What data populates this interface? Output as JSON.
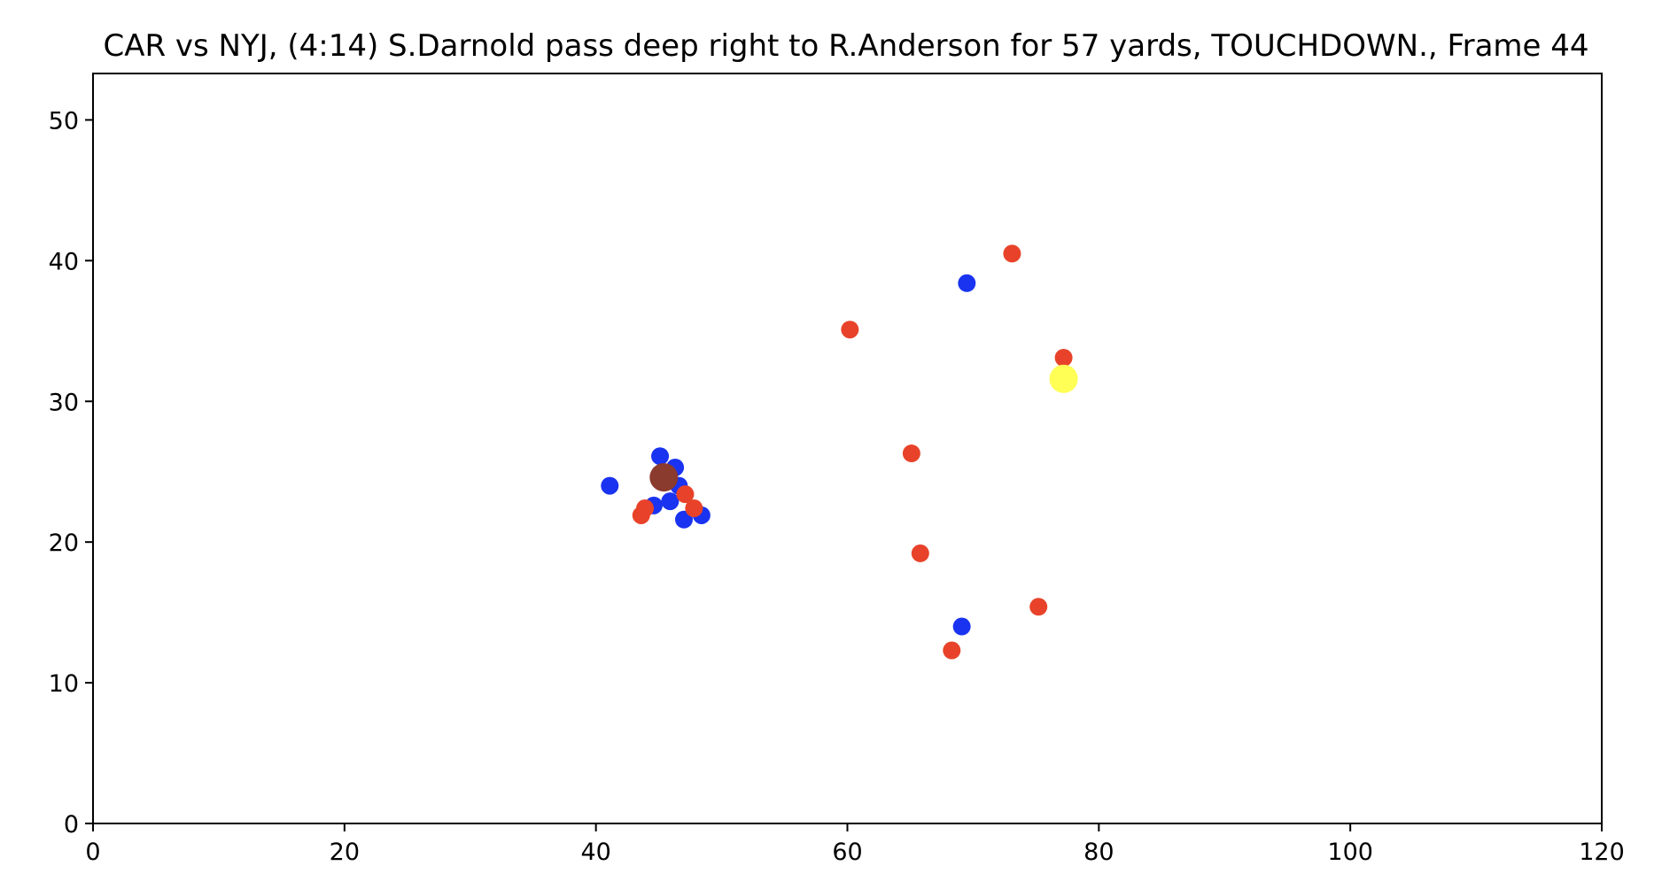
{
  "chart_data": {
    "type": "scatter",
    "title": "CAR vs NYJ, (4:14) S.Darnold pass deep right to R.Anderson for 57 yards, TOUCHDOWN., Frame 44",
    "xlabel": "",
    "ylabel": "",
    "xlim": [
      0,
      120
    ],
    "ylim": [
      0,
      53.3
    ],
    "x_ticks": [
      0,
      20,
      40,
      60,
      80,
      100,
      120
    ],
    "y_ticks": [
      0,
      10,
      20,
      30,
      40,
      50
    ],
    "grid": false,
    "legend": "none",
    "series": [
      {
        "color": "#1a33f0",
        "points": [
          {
            "x": 41.1,
            "y": 24.0
          },
          {
            "x": 45.1,
            "y": 26.1
          },
          {
            "x": 46.3,
            "y": 25.3
          },
          {
            "x": 46.6,
            "y": 24.0
          },
          {
            "x": 44.6,
            "y": 22.6
          },
          {
            "x": 45.9,
            "y": 22.9
          },
          {
            "x": 47.0,
            "y": 21.6
          },
          {
            "x": 48.4,
            "y": 21.9
          },
          {
            "x": 69.5,
            "y": 38.4
          },
          {
            "x": 69.1,
            "y": 14.0
          }
        ]
      },
      {
        "color": "#e8432a",
        "points": [
          {
            "x": 43.9,
            "y": 22.4
          },
          {
            "x": 43.6,
            "y": 21.9
          },
          {
            "x": 47.1,
            "y": 23.4
          },
          {
            "x": 47.8,
            "y": 22.4
          },
          {
            "x": 60.2,
            "y": 35.1
          },
          {
            "x": 65.1,
            "y": 26.3
          },
          {
            "x": 65.8,
            "y": 19.2
          },
          {
            "x": 73.1,
            "y": 40.5
          },
          {
            "x": 77.2,
            "y": 33.1
          },
          {
            "x": 75.2,
            "y": 15.4
          },
          {
            "x": 68.3,
            "y": 12.3
          }
        ]
      },
      {
        "color": "#8b3a2e",
        "size": "large",
        "points": [
          {
            "x": 45.4,
            "y": 24.6
          }
        ]
      },
      {
        "color": "#ffff55",
        "size": "large",
        "points": [
          {
            "x": 77.2,
            "y": 31.6
          }
        ]
      }
    ]
  }
}
